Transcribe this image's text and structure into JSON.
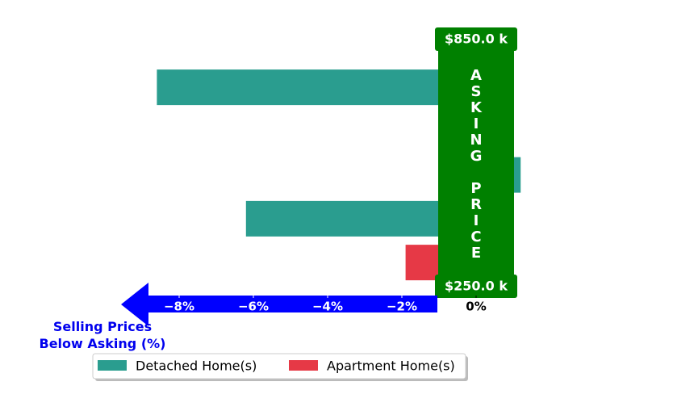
{
  "chart_data": {
    "type": "bar",
    "orientation": "horizontal",
    "categories": [
      null,
      null,
      null,
      null,
      null
    ],
    "series": [
      {
        "name": "Detached Home(s)",
        "color": "#2a9d8f",
        "values": [
          -8.6,
          null,
          1.2,
          -6.2,
          null
        ]
      },
      {
        "name": "Apartment Home(s)",
        "color": "#e63946",
        "values": [
          null,
          null,
          null,
          null,
          -1.9
        ]
      }
    ],
    "xlim": [
      -9.5,
      1.5
    ],
    "xticks": [
      {
        "value": -8,
        "label": "−8%"
      },
      {
        "value": -6,
        "label": "−6%"
      },
      {
        "value": -4,
        "label": "−4%"
      },
      {
        "value": -2,
        "label": "−2%"
      },
      {
        "value": 0,
        "label": "0%"
      }
    ],
    "xlabel": "Selling Prices\nBelow Asking (%)",
    "annotations": {
      "band_label": "ASKING PRICE",
      "top_label": "$850.0 k",
      "bottom_label": "$250.0 k"
    },
    "legend": "lower left"
  }
}
